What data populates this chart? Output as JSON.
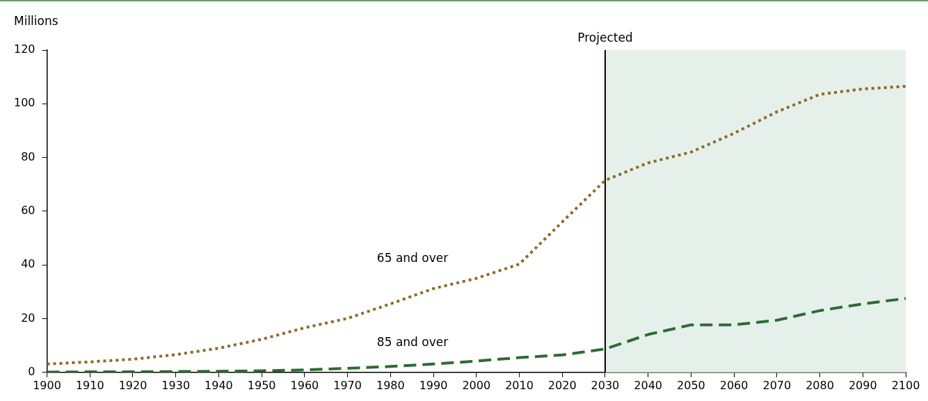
{
  "chart_data": {
    "type": "line",
    "ylabel": "Millions",
    "x": [
      1900,
      1910,
      1920,
      1930,
      1940,
      1950,
      1960,
      1970,
      1980,
      1990,
      2000,
      2010,
      2020,
      2030,
      2040,
      2050,
      2060,
      2070,
      2080,
      2090,
      2100
    ],
    "series": [
      {
        "name": "65 and over",
        "color": "#8b6a2b",
        "line_style": "dotted",
        "values": [
          3.1,
          3.9,
          4.9,
          6.6,
          9.0,
          12.3,
          16.6,
          20.1,
          25.5,
          31.2,
          35.0,
          40.3,
          56,
          71.5,
          78,
          82,
          89,
          97,
          103.5,
          105.5,
          106.5
        ]
      },
      {
        "name": "85 and over",
        "color": "#2e6b34",
        "line_style": "dashed",
        "values": [
          0.1,
          0.2,
          0.2,
          0.3,
          0.4,
          0.6,
          0.9,
          1.5,
          2.2,
          3.1,
          4.2,
          5.5,
          6.5,
          8.7,
          14.1,
          17.7,
          17.7,
          19.4,
          23,
          25.5,
          27.5
        ]
      }
    ],
    "xlim": [
      1900,
      2100
    ],
    "xticks": [
      1900,
      1910,
      1920,
      1930,
      1940,
      1950,
      1960,
      1970,
      1980,
      1990,
      2000,
      2010,
      2020,
      2030,
      2040,
      2050,
      2060,
      2070,
      2080,
      2090,
      2100
    ],
    "ylim": [
      0,
      120
    ],
    "yticks": [
      0,
      20,
      40,
      60,
      80,
      100,
      120
    ],
    "grid": false,
    "legend": false,
    "marker": "none",
    "ref_lines": [
      {
        "axis": "x",
        "value": 2030,
        "label": "Projected",
        "color": "#000000"
      }
    ],
    "bands": [
      {
        "axis": "x",
        "from": 2030,
        "to": 2100,
        "color": "#e6f0ea"
      }
    ]
  }
}
